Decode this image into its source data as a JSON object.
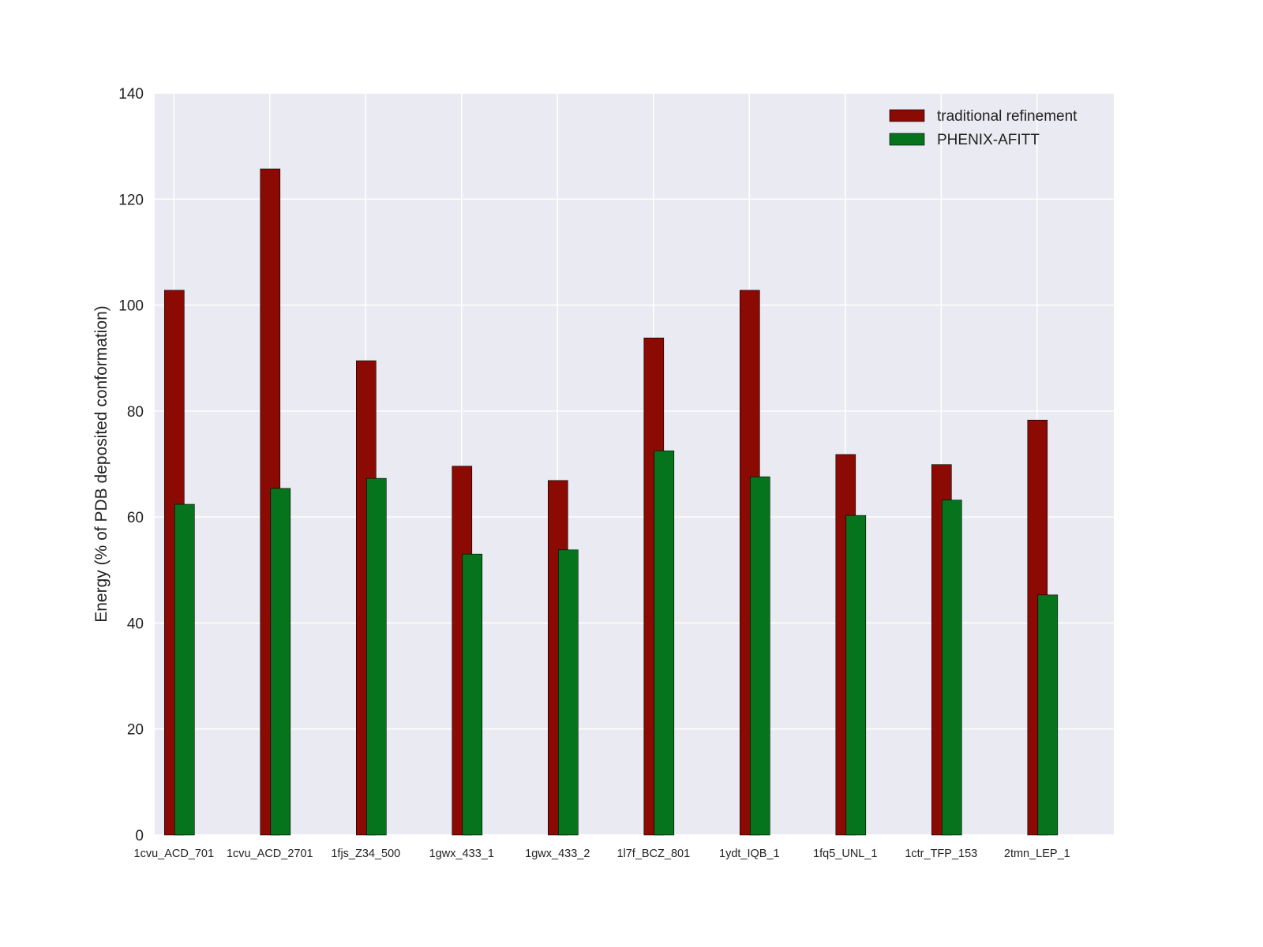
{
  "chart_data": {
    "type": "bar",
    "title": "",
    "xlabel": "",
    "ylabel": "Energy (% of PDB deposited conformation)",
    "ylim": [
      0,
      140
    ],
    "yticks": [
      0,
      20,
      40,
      60,
      80,
      100,
      120,
      140
    ],
    "grid": true,
    "legend_position": "top-right",
    "categories": [
      "1cvu_ACD_701",
      "1cvu_ACD_2701",
      "1fjs_Z34_500",
      "1gwx_433_1",
      "1gwx_433_2",
      "1l7f_BCZ_801",
      "1ydt_IQB_1",
      "1fq5_UNL_1",
      "1ctr_TFP_153",
      "2tmn_LEP_1"
    ],
    "series": [
      {
        "name": "traditional refinement",
        "color": "#8b0a03",
        "values": [
          102.8,
          125.7,
          89.5,
          69.6,
          66.9,
          93.8,
          102.8,
          71.8,
          69.9,
          78.3
        ]
      },
      {
        "name": "PHENIX-AFITT",
        "color": "#05741c",
        "values": [
          62.4,
          65.4,
          67.3,
          53.0,
          53.8,
          72.5,
          67.6,
          60.3,
          63.2,
          45.3
        ]
      }
    ]
  }
}
